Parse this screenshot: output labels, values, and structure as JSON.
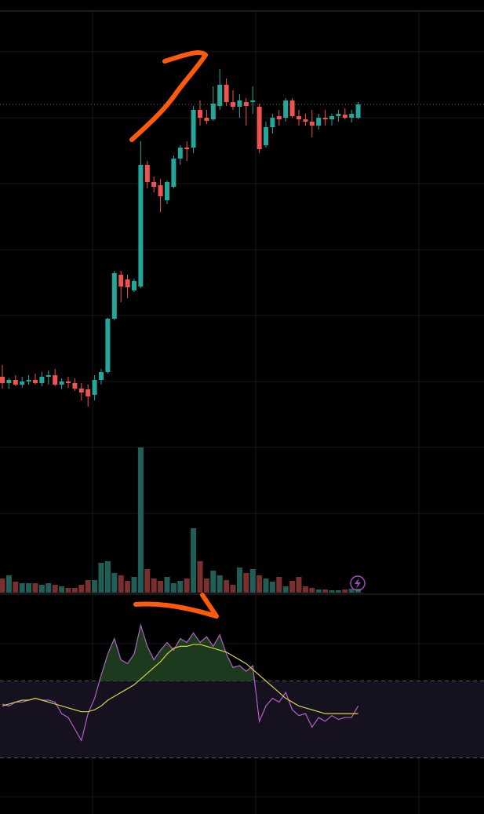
{
  "chart_data": [
    {
      "type": "candlestick",
      "up_color": "#26a69a",
      "down_color": "#ef5350",
      "ylim": [
        0,
        555
      ],
      "last_price_line": true,
      "open": [
        75,
        67,
        71,
        65,
        69,
        71,
        67,
        75,
        77,
        65,
        69,
        67,
        60,
        59,
        52,
        71,
        81,
        149,
        205,
        199,
        185,
        190,
        345,
        323,
        319,
        300,
        317,
        353,
        367,
        367,
        415,
        405,
        403,
        420,
        447,
        425,
        419,
        425,
        425,
        419,
        370,
        393,
        407,
        405,
        427,
        407,
        403,
        400,
        395,
        405,
        403,
        407,
        409,
        405,
        405
      ],
      "high": [
        90,
        73,
        77,
        75,
        77,
        79,
        81,
        83,
        85,
        73,
        75,
        73,
        67,
        65,
        77,
        85,
        150,
        210,
        210,
        205,
        200,
        375,
        350,
        330,
        327,
        325,
        357,
        370,
        375,
        420,
        427,
        415,
        445,
        467,
        455,
        440,
        435,
        430,
        445,
        423,
        400,
        410,
        415,
        430,
        430,
        415,
        410,
        415,
        410,
        415,
        410,
        415,
        417,
        415,
        425
      ],
      "low": [
        60,
        60,
        63,
        61,
        65,
        65,
        63,
        65,
        63,
        59,
        61,
        57,
        45,
        37,
        45,
        65,
        79,
        147,
        170,
        175,
        183,
        188,
        315,
        310,
        285,
        295,
        315,
        345,
        350,
        360,
        395,
        397,
        401,
        415,
        420,
        415,
        405,
        395,
        410,
        360,
        367,
        385,
        395,
        400,
        405,
        395,
        395,
        380,
        390,
        395,
        395,
        400,
        403,
        399,
        403
      ],
      "close": [
        67,
        71,
        65,
        69,
        71,
        67,
        75,
        77,
        65,
        69,
        67,
        60,
        55,
        50,
        71,
        81,
        149,
        207,
        190,
        189,
        197,
        345,
        323,
        317,
        305,
        323,
        353,
        367,
        365,
        415,
        405,
        401,
        423,
        447,
        425,
        419,
        427,
        420,
        427,
        365,
        393,
        405,
        403,
        427,
        407,
        403,
        400,
        395,
        405,
        403,
        407,
        410,
        405,
        410,
        422
      ]
    },
    {
      "type": "bar",
      "up_color": "#1f5f58",
      "down_color": "#7a2f2f",
      "ylim": [
        0,
        195
      ],
      "values": [
        18,
        22,
        14,
        12,
        12,
        12,
        10,
        12,
        10,
        8,
        6,
        6,
        10,
        16,
        16,
        38,
        40,
        25,
        22,
        15,
        20,
        185,
        30,
        18,
        15,
        20,
        12,
        15,
        18,
        82,
        40,
        18,
        28,
        22,
        16,
        10,
        32,
        25,
        30,
        22,
        18,
        14,
        20,
        8,
        15,
        20,
        8,
        6,
        4,
        4,
        3,
        3,
        4,
        5,
        5
      ]
    },
    {
      "type": "line",
      "ylim": [
        0,
        100
      ],
      "levels": [
        70,
        30
      ],
      "band_color": "#15111f",
      "fill_color": "#1e3a1e",
      "series": [
        {
          "color": "#b062c8",
          "values": [
            58,
            57,
            59,
            59,
            60,
            61,
            60,
            60,
            59,
            53,
            51,
            45,
            39,
            53,
            61,
            73,
            84,
            92,
            81,
            79,
            84,
            99,
            88,
            81,
            86,
            90,
            86,
            92,
            90,
            95,
            90,
            93,
            88,
            94,
            84,
            77,
            78,
            75,
            78,
            49,
            57,
            61,
            59,
            64,
            55,
            52,
            53,
            46,
            51,
            49,
            52,
            50,
            51,
            51,
            57
          ]
        },
        {
          "color": "#d4d445",
          "values": [
            57,
            58,
            59,
            60,
            60,
            61,
            60,
            59,
            58,
            57,
            56,
            55,
            54,
            54,
            55,
            57,
            60,
            62,
            64,
            66,
            68,
            71,
            74,
            77,
            80,
            84,
            87,
            88,
            88,
            89,
            89,
            88,
            87,
            86,
            85,
            83,
            81,
            79,
            76,
            73,
            70,
            67,
            64,
            61,
            59,
            57,
            56,
            55,
            54,
            53,
            53,
            53,
            53,
            53,
            53
          ]
        }
      ]
    }
  ]
}
